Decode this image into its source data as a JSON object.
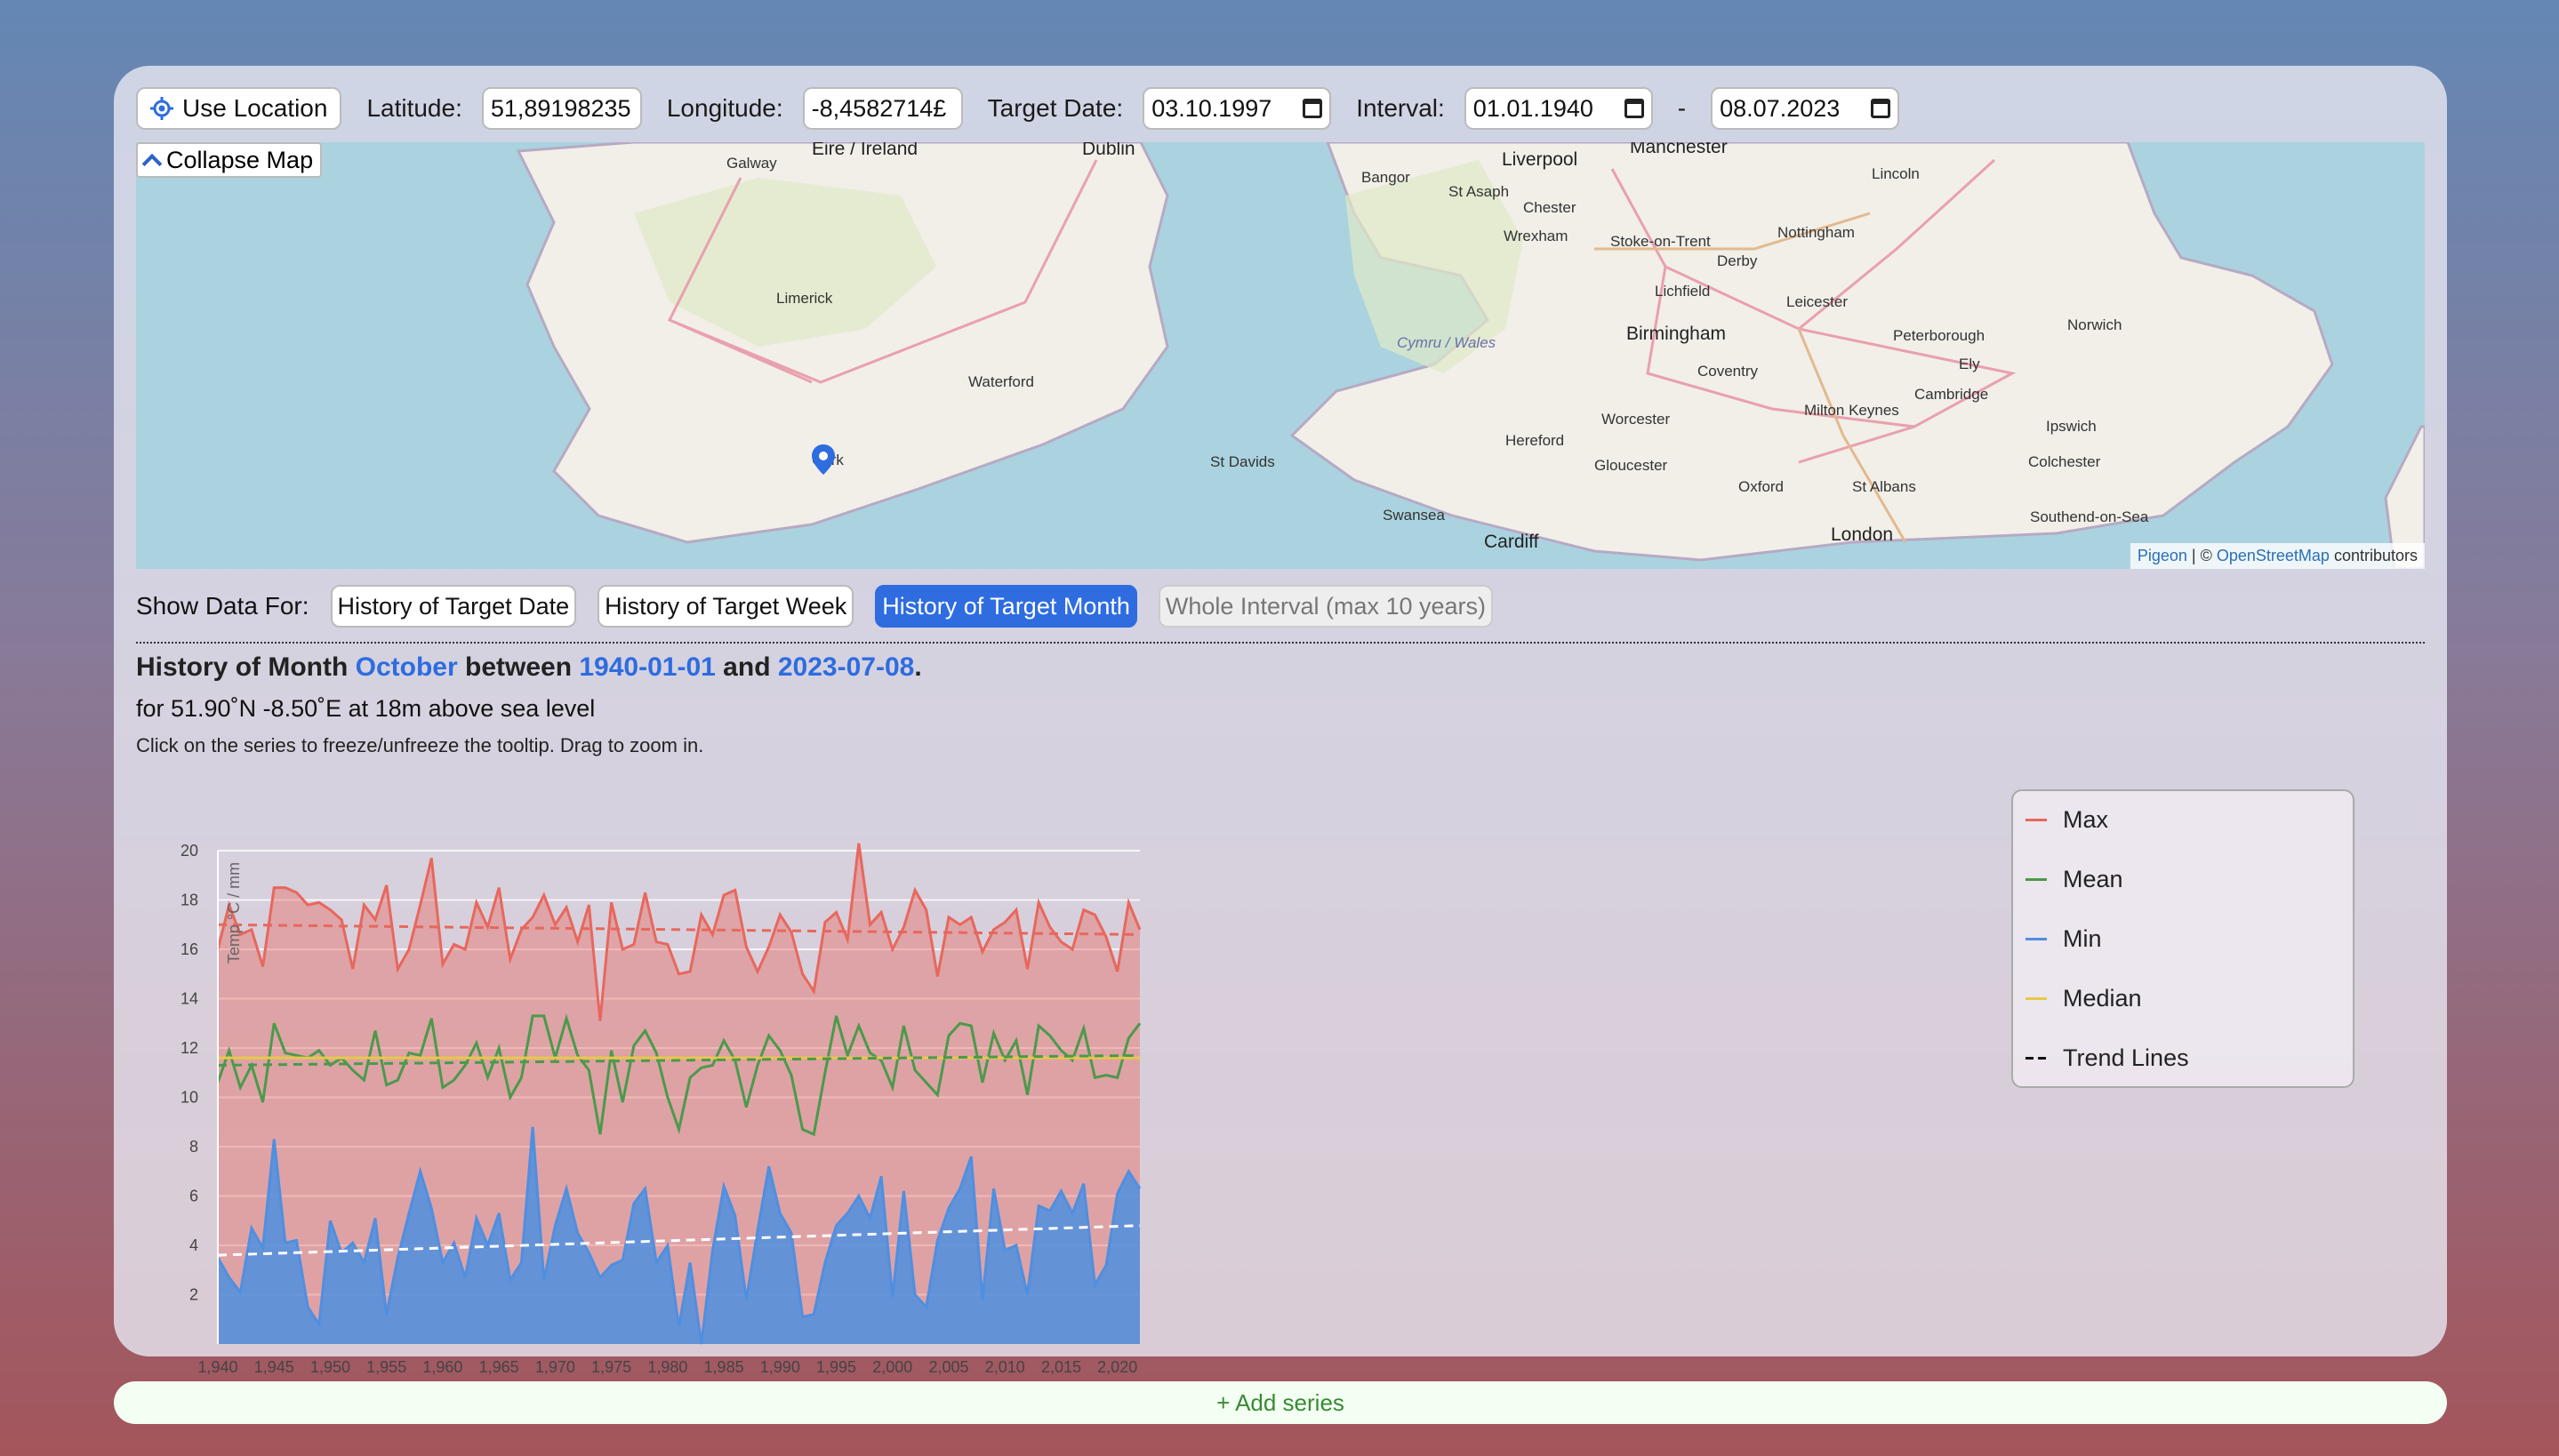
{
  "toolbar": {
    "use_location_label": "Use Location",
    "latitude_label": "Latitude:",
    "latitude_value": "51,89198235",
    "longitude_label": "Longitude:",
    "longitude_value": "-8,4582714£",
    "target_date_label": "Target Date:",
    "target_date_value": "03.10.1997",
    "interval_label": "Interval:",
    "interval_start": "01.01.1940",
    "interval_sep": "-",
    "interval_end": "08.07.2023"
  },
  "map": {
    "collapse_label": "Collapse Map",
    "attribution_pigeon": "Pigeon",
    "attribution_sep": " | © ",
    "attribution_osm": "OpenStreetMap",
    "attribution_contrib": " contributors",
    "places": [
      "Galway",
      "Éire / Ireland",
      "Dublin",
      "Limerick",
      "Waterford",
      "Cork",
      "Bangor",
      "Liverpool",
      "Manchester",
      "St Asaph",
      "Chester",
      "Wrexham",
      "Stoke-on-Trent",
      "Derby",
      "Nottingham",
      "Lincoln",
      "Leicester",
      "Lichfield",
      "Birmingham",
      "Coventry",
      "Peterborough",
      "Ely",
      "Norwich",
      "Cymru / Wales",
      "Cambridge",
      "Hereford",
      "Worcester",
      "Milton Keynes",
      "Ipswich",
      "St Davids",
      "Gloucester",
      "Colchester",
      "Oxford",
      "St Albans",
      "Swansea",
      "Cardiff",
      "London",
      "Southend-on-Sea"
    ]
  },
  "show_data": {
    "label": "Show Data For:",
    "tabs": [
      "History of Target Date",
      "History of Target Week",
      "History of Target Month",
      "Whole Interval (max 10 years)"
    ],
    "active_index": 2
  },
  "heading": {
    "part1": "History of Month ",
    "month": "October",
    "part2": " between ",
    "start": "1940-01-01",
    "part3": " and ",
    "end": "2023-07-08",
    "part4": ".",
    "location_line": "for 51.90˚N -8.50˚E at 18m above sea level",
    "hint": "Click on the series to freeze/unfreeze the tooltip. Drag to zoom in."
  },
  "colors": {
    "max": "#e8675c",
    "mean": "#4a9a4a",
    "min": "#4f8fe0",
    "median": "#e8c84a",
    "trend": "#111111",
    "accent": "#2e6ce0"
  },
  "legend": {
    "items": [
      {
        "label": "Max",
        "color": "#e8675c",
        "style": "solid"
      },
      {
        "label": "Mean",
        "color": "#4a9a4a",
        "style": "solid"
      },
      {
        "label": "Min",
        "color": "#4f8fe0",
        "style": "solid"
      },
      {
        "label": "Median",
        "color": "#e8c84a",
        "style": "solid"
      },
      {
        "label": "Trend Lines",
        "color": "#111111",
        "style": "dashed"
      }
    ]
  },
  "chart_data": {
    "type": "area",
    "title": "",
    "xlabel": "",
    "ylabel": "Temp °C / mm",
    "xlim": [
      1940,
      2022
    ],
    "ylim": [
      0,
      20
    ],
    "x_ticks": [
      "1,940",
      "1,945",
      "1,950",
      "1,955",
      "1,960",
      "1,965",
      "1,970",
      "1,975",
      "1,980",
      "1,985",
      "1,990",
      "1,995",
      "2,000",
      "2,005",
      "2,010",
      "2,015",
      "2,020"
    ],
    "y_ticks": [
      2,
      4,
      6,
      8,
      10,
      12,
      14,
      16,
      18,
      20
    ],
    "grid": true,
    "legend_position": "right",
    "x_start": 1940,
    "series": [
      {
        "name": "Max",
        "values": [
          16,
          17.8,
          16.6,
          16.8,
          15.3,
          18.5,
          18.5,
          18.3,
          17.8,
          17.9,
          17.6,
          17.2,
          15.2,
          17.8,
          17.2,
          18.6,
          15.2,
          16,
          17.8,
          19.7,
          15.4,
          16.2,
          16,
          17.9,
          16.9,
          18.5,
          15.6,
          16.8,
          17.3,
          18.2,
          17,
          17.7,
          16.3,
          17.8,
          13.1,
          17.9,
          16,
          16.2,
          18.3,
          16.3,
          16.2,
          15,
          15.1,
          17.4,
          16.6,
          18.2,
          18.4,
          16.1,
          15.1,
          16.1,
          17.4,
          16.7,
          15,
          14.3,
          17.1,
          17.5,
          16.4,
          20.3,
          17,
          17.5,
          16,
          16.9,
          18.4,
          17.6,
          14.9,
          17.3,
          17,
          17.3,
          15.9,
          16.8,
          17.1,
          17.6,
          15.2,
          17.9,
          16.9,
          16.3,
          16,
          17.6,
          17.4,
          16.5,
          15.1,
          17.9,
          16.8
        ]
      },
      {
        "name": "Mean",
        "values": [
          10.6,
          11.9,
          10.4,
          11.3,
          9.8,
          13,
          11.8,
          11.7,
          11.6,
          11.9,
          11.3,
          11.6,
          11.1,
          10.7,
          12.7,
          10.5,
          10.7,
          11.8,
          11.7,
          13.2,
          10.4,
          10.7,
          11.3,
          12.2,
          10.8,
          12,
          10,
          10.8,
          13.3,
          13.3,
          11.6,
          13.2,
          11.7,
          11.1,
          8.5,
          11.9,
          9.8,
          12.1,
          12.7,
          11.8,
          10,
          8.7,
          10.8,
          11.2,
          11.3,
          12.3,
          11.5,
          9.6,
          11.3,
          12.5,
          11.9,
          10.9,
          8.7,
          8.5,
          11,
          13.3,
          11.7,
          12.9,
          11.8,
          11.5,
          10.4,
          12.9,
          11.1,
          10.6,
          10.1,
          12.5,
          13,
          12.9,
          10.6,
          12.6,
          11.5,
          12.3,
          10.1,
          12.9,
          12.5,
          11.9,
          11.5,
          12.8,
          10.8,
          10.9,
          10.8,
          12.4,
          13
        ]
      },
      {
        "name": "Min",
        "values": [
          3.5,
          2.7,
          2.1,
          4.7,
          3.9,
          8.3,
          4.1,
          4.2,
          1.5,
          0.8,
          5,
          3.7,
          4.1,
          3.3,
          5.1,
          1.2,
          3.5,
          5.3,
          7,
          5.5,
          3.3,
          4.1,
          2.7,
          5.1,
          4,
          5.3,
          2.6,
          3.3,
          8.8,
          2.6,
          4.8,
          6.3,
          4.5,
          3.7,
          2.7,
          3.2,
          3.4,
          5.7,
          6.3,
          3.3,
          4,
          0.7,
          3.3,
          0,
          3.8,
          6.4,
          5.2,
          1.8,
          4.6,
          7.2,
          5.3,
          4.5,
          1.1,
          1.2,
          3.3,
          4.8,
          5.3,
          6,
          5.1,
          6.8,
          1.9,
          6.2,
          2,
          1.5,
          4.2,
          5.5,
          6.3,
          7.6,
          1.8,
          6.3,
          3.8,
          4,
          2,
          5.6,
          5.4,
          6.2,
          5.3,
          6.5,
          2.4,
          3.2,
          6.1,
          7,
          6.3
        ]
      },
      {
        "name": "Median",
        "values": [
          11.6,
          11.6
        ]
      },
      {
        "name": "Trend Lines",
        "values": [
          17,
          16.6,
          11.3,
          11.7,
          3.6,
          4.8
        ]
      }
    ]
  },
  "add_series_label": "+ Add series"
}
